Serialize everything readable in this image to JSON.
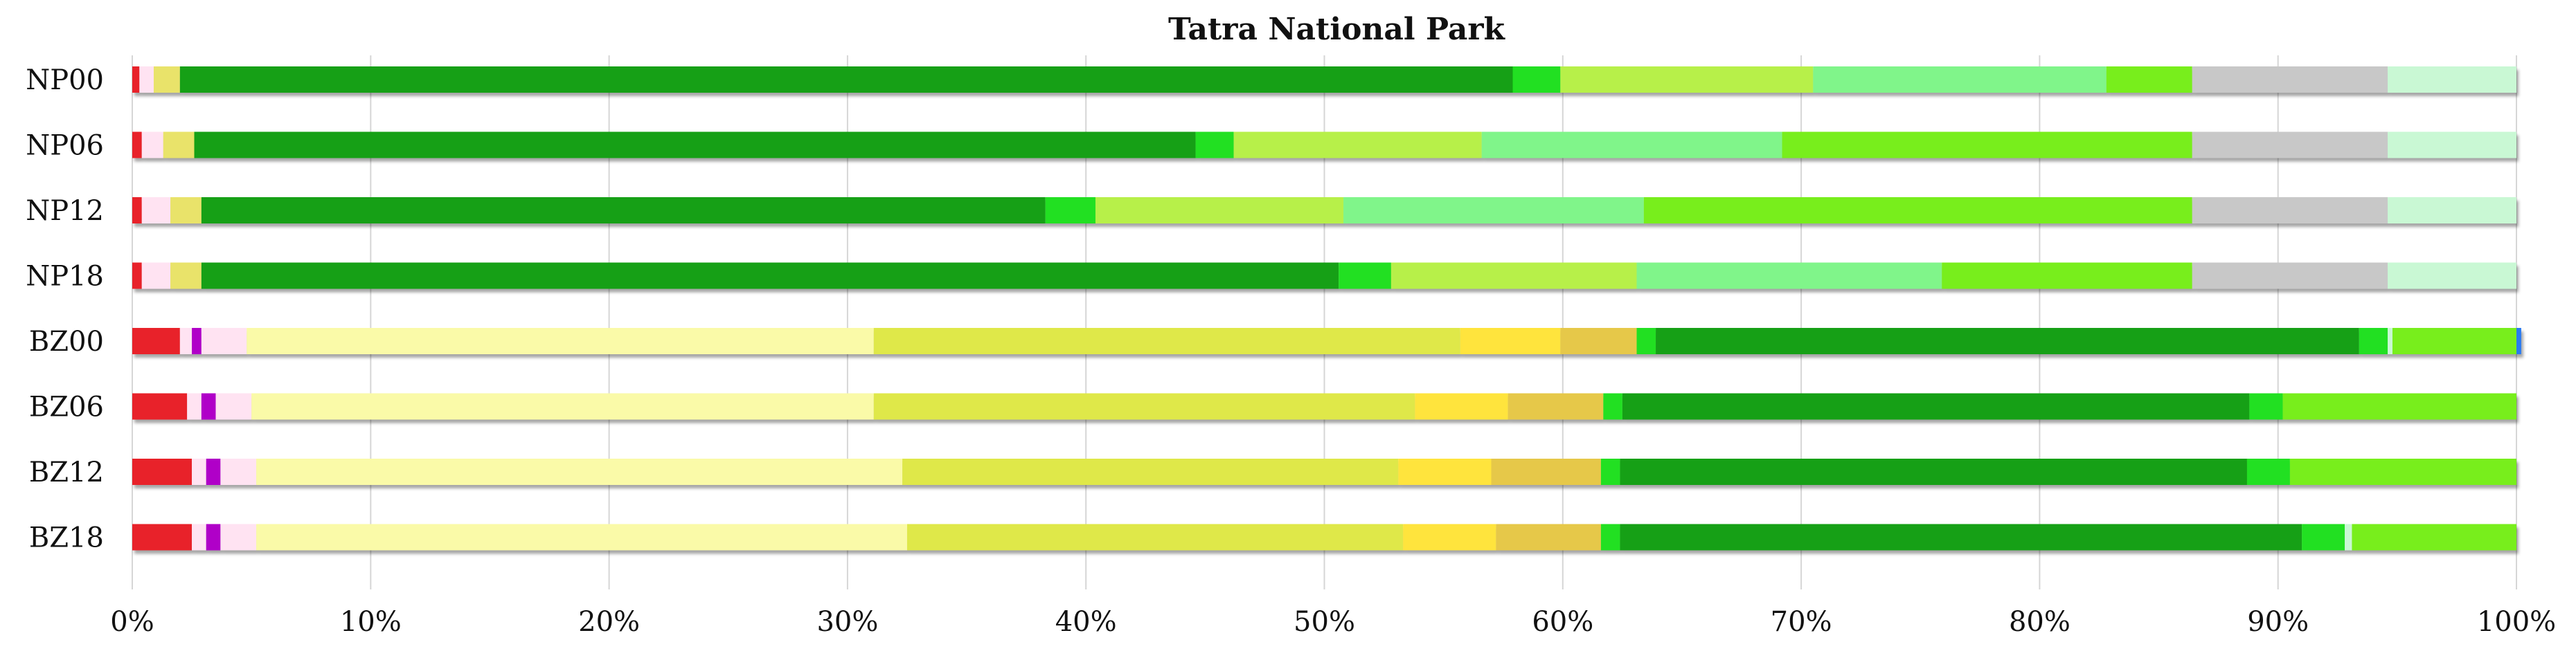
{
  "chart_data": {
    "type": "bar",
    "orientation": "horizontal",
    "stacked": true,
    "title": "Tatra National Park",
    "categories": [
      "NP00",
      "NP06",
      "NP12",
      "NP18",
      "BZ00",
      "BZ06",
      "BZ12",
      "BZ18"
    ],
    "xlim": [
      0,
      100
    ],
    "x_ticks": [
      "0%",
      "10%",
      "20%",
      "30%",
      "40%",
      "50%",
      "60%",
      "70%",
      "80%",
      "90%",
      "100%"
    ],
    "grid": "vertical",
    "legend": "none",
    "rows": [
      {
        "label": "NP00",
        "segments": [
          {
            "value": 0.3,
            "color": "#e8202a"
          },
          {
            "value": 0.6,
            "color": "#ffe3f2"
          },
          {
            "value": 1.1,
            "color": "#e9e36a"
          },
          {
            "value": 55.9,
            "color": "#12a012"
          },
          {
            "value": 2.0,
            "color": "#22e022"
          },
          {
            "value": 10.6,
            "color": "#b7f04a"
          },
          {
            "value": 12.3,
            "color": "#80f58a"
          },
          {
            "value": 3.6,
            "color": "#78ee1a"
          },
          {
            "value": 8.2,
            "color": "#c8c8c8"
          },
          {
            "value": 5.4,
            "color": "#c9f8d4"
          }
        ]
      },
      {
        "label": "NP06",
        "segments": [
          {
            "value": 0.4,
            "color": "#e8202a"
          },
          {
            "value": 0.9,
            "color": "#ffe3f2"
          },
          {
            "value": 1.3,
            "color": "#e9e36a"
          },
          {
            "value": 42.0,
            "color": "#12a012"
          },
          {
            "value": 1.6,
            "color": "#22e022"
          },
          {
            "value": 10.4,
            "color": "#b7f04a"
          },
          {
            "value": 12.6,
            "color": "#80f58a"
          },
          {
            "value": 17.2,
            "color": "#78ee1a"
          },
          {
            "value": 8.2,
            "color": "#c8c8c8"
          },
          {
            "value": 5.4,
            "color": "#c9f8d4"
          }
        ]
      },
      {
        "label": "NP12",
        "segments": [
          {
            "value": 0.4,
            "color": "#e8202a"
          },
          {
            "value": 1.2,
            "color": "#ffe3f2"
          },
          {
            "value": 1.3,
            "color": "#e9e36a"
          },
          {
            "value": 35.4,
            "color": "#12a012"
          },
          {
            "value": 2.1,
            "color": "#22e022"
          },
          {
            "value": 10.4,
            "color": "#b7f04a"
          },
          {
            "value": 12.6,
            "color": "#80f58a"
          },
          {
            "value": 23.0,
            "color": "#78ee1a"
          },
          {
            "value": 8.2,
            "color": "#c8c8c8"
          },
          {
            "value": 5.4,
            "color": "#c9f8d4"
          }
        ]
      },
      {
        "label": "NP18",
        "segments": [
          {
            "value": 0.4,
            "color": "#e8202a"
          },
          {
            "value": 1.2,
            "color": "#ffe3f2"
          },
          {
            "value": 1.3,
            "color": "#e9e36a"
          },
          {
            "value": 47.7,
            "color": "#12a012"
          },
          {
            "value": 2.2,
            "color": "#22e022"
          },
          {
            "value": 10.3,
            "color": "#b7f04a"
          },
          {
            "value": 12.8,
            "color": "#80f58a"
          },
          {
            "value": 10.5,
            "color": "#78ee1a"
          },
          {
            "value": 8.2,
            "color": "#c8c8c8"
          },
          {
            "value": 5.4,
            "color": "#c9f8d4"
          }
        ]
      },
      {
        "label": "BZ00",
        "segments": [
          {
            "value": 2.0,
            "color": "#e8202a"
          },
          {
            "value": 0.5,
            "color": "#ffe3f2"
          },
          {
            "value": 0.4,
            "color": "#b000c8"
          },
          {
            "value": 1.9,
            "color": "#ffe3f2"
          },
          {
            "value": 26.3,
            "color": "#fafaa8"
          },
          {
            "value": 24.6,
            "color": "#dfe84a"
          },
          {
            "value": 4.2,
            "color": "#ffe43c"
          },
          {
            "value": 3.2,
            "color": "#e6c84a"
          },
          {
            "value": 0.8,
            "color": "#22e022"
          },
          {
            "value": 29.5,
            "color": "#12a012"
          },
          {
            "value": 1.2,
            "color": "#22e022"
          },
          {
            "value": 0.2,
            "color": "#c9f8d4"
          },
          {
            "value": 5.2,
            "color": "#78ee1a"
          },
          {
            "value": 0.2,
            "color": "#2a7af0"
          }
        ]
      },
      {
        "label": "BZ06",
        "segments": [
          {
            "value": 2.3,
            "color": "#e8202a"
          },
          {
            "value": 0.6,
            "color": "#ffe3f2"
          },
          {
            "value": 0.6,
            "color": "#b000c8"
          },
          {
            "value": 1.5,
            "color": "#ffe3f2"
          },
          {
            "value": 26.1,
            "color": "#fafaa8"
          },
          {
            "value": 22.7,
            "color": "#dfe84a"
          },
          {
            "value": 3.9,
            "color": "#ffe43c"
          },
          {
            "value": 4.0,
            "color": "#e6c84a"
          },
          {
            "value": 0.8,
            "color": "#22e022"
          },
          {
            "value": 26.3,
            "color": "#12a012"
          },
          {
            "value": 1.4,
            "color": "#22e022"
          },
          {
            "value": 9.8,
            "color": "#78ee1a"
          }
        ]
      },
      {
        "label": "BZ12",
        "segments": [
          {
            "value": 2.5,
            "color": "#e8202a"
          },
          {
            "value": 0.6,
            "color": "#ffe3f2"
          },
          {
            "value": 0.6,
            "color": "#b000c8"
          },
          {
            "value": 1.5,
            "color": "#ffe3f2"
          },
          {
            "value": 27.1,
            "color": "#fafaa8"
          },
          {
            "value": 20.8,
            "color": "#dfe84a"
          },
          {
            "value": 3.9,
            "color": "#ffe43c"
          },
          {
            "value": 4.6,
            "color": "#e6c84a"
          },
          {
            "value": 0.8,
            "color": "#22e022"
          },
          {
            "value": 26.3,
            "color": "#12a012"
          },
          {
            "value": 1.8,
            "color": "#22e022"
          },
          {
            "value": 9.5,
            "color": "#78ee1a"
          }
        ]
      },
      {
        "label": "BZ18",
        "segments": [
          {
            "value": 2.5,
            "color": "#e8202a"
          },
          {
            "value": 0.6,
            "color": "#ffe3f2"
          },
          {
            "value": 0.6,
            "color": "#b000c8"
          },
          {
            "value": 1.5,
            "color": "#ffe3f2"
          },
          {
            "value": 27.3,
            "color": "#fafaa8"
          },
          {
            "value": 20.8,
            "color": "#dfe84a"
          },
          {
            "value": 3.9,
            "color": "#ffe43c"
          },
          {
            "value": 4.4,
            "color": "#e6c84a"
          },
          {
            "value": 0.8,
            "color": "#22e022"
          },
          {
            "value": 28.6,
            "color": "#12a012"
          },
          {
            "value": 1.8,
            "color": "#22e022"
          },
          {
            "value": 0.3,
            "color": "#c9f8d4"
          },
          {
            "value": 6.9,
            "color": "#78ee1a"
          }
        ]
      }
    ]
  }
}
